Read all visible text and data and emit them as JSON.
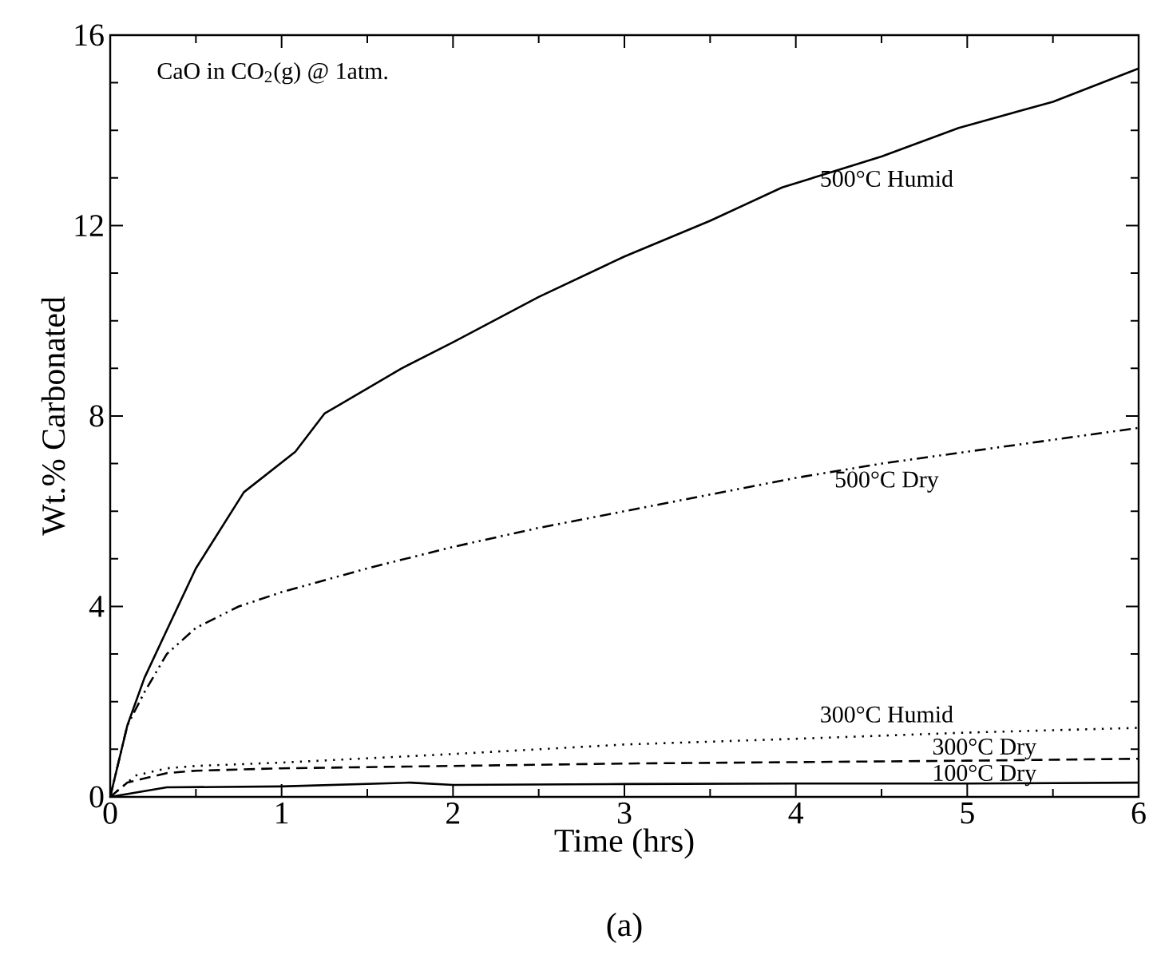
{
  "chart_data": {
    "type": "line",
    "title": "CaO in CO$_{2}$(g) @ 1atm.",
    "xlabel": "Time (hrs)",
    "ylabel": "Wt.% Carbonated",
    "annotations": [
      "(a)"
    ],
    "xlim": [
      0,
      6
    ],
    "ylim": [
      0,
      16
    ],
    "xticks": [
      0,
      1,
      2,
      3,
      4,
      5,
      6
    ],
    "yticks": [
      0,
      4,
      8,
      12,
      16
    ],
    "grid": false,
    "legend": false,
    "series": [
      {
        "name": "500°C Humid",
        "color": "#000000",
        "line_style": "solid",
        "x": [
          0,
          0.1,
          0.2,
          0.33,
          0.5,
          0.78,
          1.08,
          1.25,
          1.7,
          2,
          2.5,
          3,
          3.5,
          3.92,
          4.5,
          4.95,
          5.5,
          6
        ],
        "values": [
          0,
          1.5,
          2.5,
          3.5,
          4.8,
          6.4,
          7.25,
          8.05,
          9.0,
          9.55,
          10.5,
          11.35,
          12.1,
          12.8,
          13.45,
          14.05,
          14.6,
          15.3
        ]
      },
      {
        "name": "500°C Dry",
        "color": "#000000",
        "line_style": "dashdotdot",
        "x": [
          0,
          0.1,
          0.2,
          0.33,
          0.5,
          0.75,
          1,
          1.5,
          2,
          2.5,
          3,
          3.5,
          4,
          4.5,
          5,
          5.5,
          6
        ],
        "values": [
          0,
          1.5,
          2.2,
          3.0,
          3.55,
          4.0,
          4.3,
          4.8,
          5.25,
          5.65,
          6.0,
          6.35,
          6.7,
          7.0,
          7.25,
          7.5,
          7.75
        ]
      },
      {
        "name": "300°C Humid",
        "color": "#000000",
        "line_style": "dotted",
        "x": [
          0,
          0.15,
          0.33,
          0.5,
          1,
          2,
          3,
          4,
          5,
          6
        ],
        "values": [
          0,
          0.45,
          0.6,
          0.65,
          0.72,
          0.9,
          1.1,
          1.22,
          1.35,
          1.45
        ]
      },
      {
        "name": "300°C Dry",
        "color": "#000000",
        "line_style": "dashed",
        "x": [
          0,
          0.1,
          0.33,
          0.5,
          1,
          2,
          3,
          4,
          5,
          6
        ],
        "values": [
          0,
          0.3,
          0.5,
          0.55,
          0.6,
          0.65,
          0.7,
          0.73,
          0.76,
          0.8
        ]
      },
      {
        "name": "100°C Dry",
        "color": "#000000",
        "line_style": "solid",
        "x": [
          0,
          0.33,
          1,
          1.75,
          2,
          3,
          4,
          5,
          6
        ],
        "values": [
          0,
          0.2,
          0.22,
          0.3,
          0.25,
          0.27,
          0.28,
          0.28,
          0.3
        ]
      }
    ]
  }
}
